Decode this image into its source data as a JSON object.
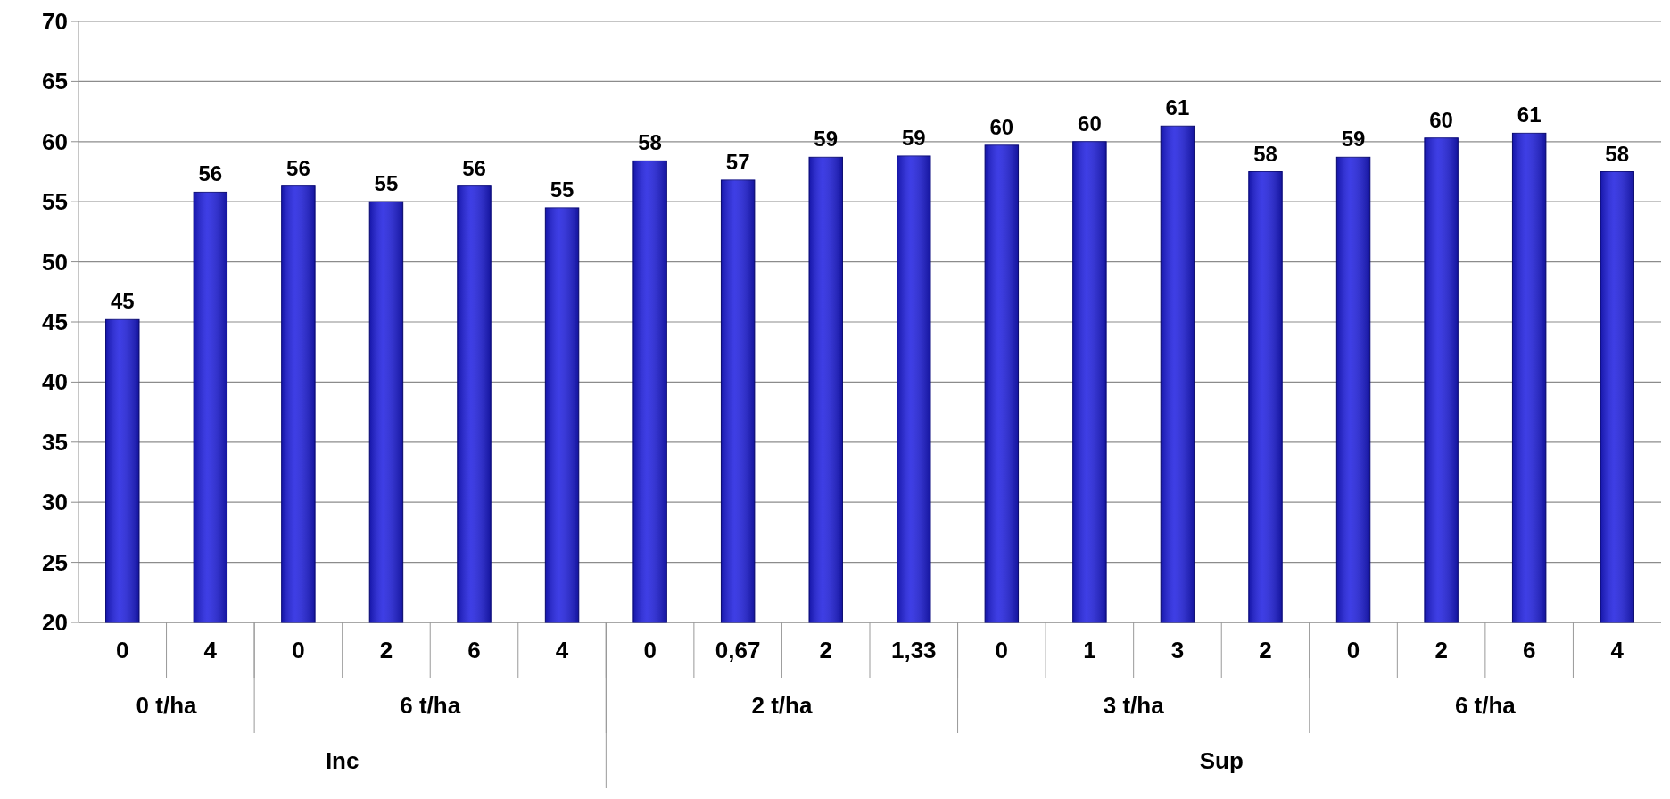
{
  "chart_data": {
    "type": "bar",
    "categories": [
      "0",
      "4",
      "0",
      "2",
      "6",
      "4",
      "0",
      "0,67",
      "2",
      "1,33",
      "0",
      "1",
      "3",
      "2",
      "0",
      "2",
      "6",
      "4"
    ],
    "values": [
      45.2,
      55.8,
      56.3,
      55.0,
      56.3,
      54.5,
      58.4,
      56.8,
      58.7,
      58.8,
      59.7,
      60.0,
      61.3,
      57.5,
      58.7,
      60.3,
      60.7,
      57.5
    ],
    "value_labels": [
      "45",
      "56",
      "56",
      "55",
      "56",
      "55",
      "58",
      "57",
      "59",
      "59",
      "60",
      "60",
      "61",
      "58",
      "59",
      "60",
      "61",
      "58"
    ],
    "color": "#1c1ce0",
    "ylim": [
      20,
      70
    ],
    "yticks": [
      20,
      25,
      30,
      35,
      40,
      45,
      50,
      55,
      60,
      65,
      70
    ],
    "grid": "y",
    "annotations": [
      "0 t/ha",
      "6 t/ha",
      "2 t/ha",
      "3 t/ha",
      "6 t/ha",
      "Inc",
      "Sup"
    ]
  }
}
